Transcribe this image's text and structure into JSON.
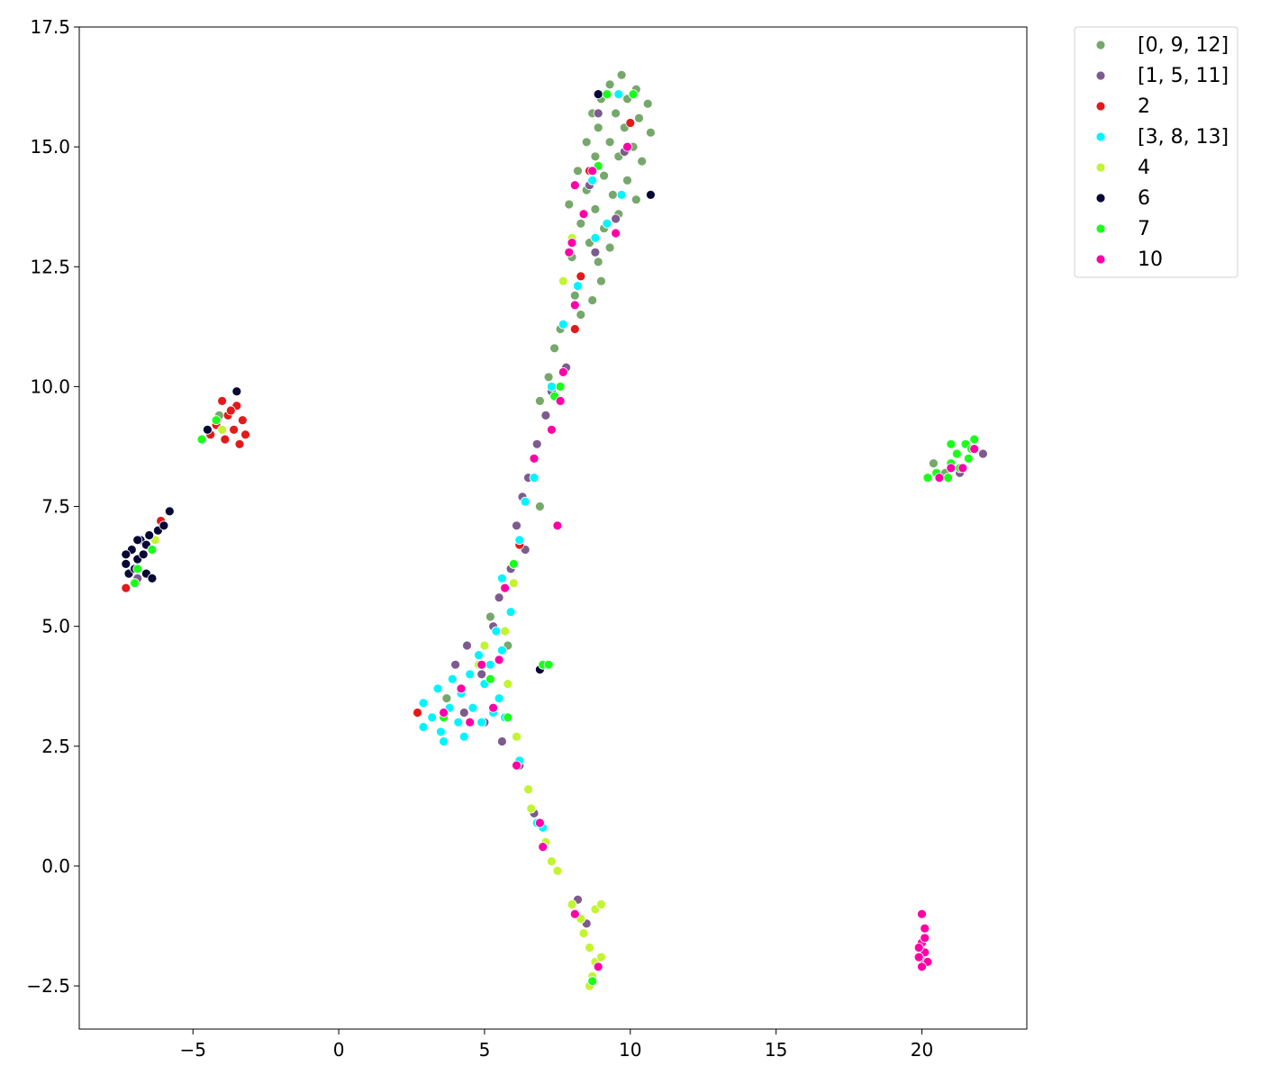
{
  "chart_data": {
    "type": "scatter",
    "title": "",
    "xlabel": "",
    "ylabel": "",
    "xlim": [
      -8.9,
      23.6
    ],
    "ylim": [
      -3.4,
      17.5
    ],
    "xticks": [
      -5,
      0,
      5,
      10,
      15,
      20
    ],
    "xtick_labels": [
      "−5",
      "0",
      "5",
      "10",
      "15",
      "20"
    ],
    "yticks": [
      -2.5,
      0.0,
      2.5,
      5.0,
      7.5,
      10.0,
      12.5,
      15.0,
      17.5
    ],
    "ytick_labels": [
      "−2.5",
      "0.0",
      "2.5",
      "5.0",
      "7.5",
      "10.0",
      "12.5",
      "15.0",
      "17.5"
    ],
    "grid": false,
    "legend_position": "outside-top-right",
    "series": [
      {
        "name": "[0, 9, 12]",
        "color": "#76a86b",
        "points": [
          [
            9.7,
            16.5
          ],
          [
            9.3,
            16.3
          ],
          [
            10.2,
            16.2
          ],
          [
            9.0,
            16.0
          ],
          [
            9.9,
            16.0
          ],
          [
            10.6,
            15.9
          ],
          [
            8.7,
            15.7
          ],
          [
            9.5,
            15.7
          ],
          [
            10.3,
            15.6
          ],
          [
            8.9,
            15.4
          ],
          [
            9.8,
            15.4
          ],
          [
            10.7,
            15.3
          ],
          [
            8.5,
            15.1
          ],
          [
            9.3,
            15.1
          ],
          [
            10.1,
            15.0
          ],
          [
            8.8,
            14.8
          ],
          [
            9.6,
            14.8
          ],
          [
            10.4,
            14.7
          ],
          [
            8.2,
            14.5
          ],
          [
            9.1,
            14.4
          ],
          [
            9.9,
            14.3
          ],
          [
            8.5,
            14.1
          ],
          [
            9.4,
            14.0
          ],
          [
            10.2,
            13.9
          ],
          [
            7.9,
            13.8
          ],
          [
            8.8,
            13.7
          ],
          [
            9.6,
            13.6
          ],
          [
            8.3,
            13.4
          ],
          [
            9.1,
            13.3
          ],
          [
            8.6,
            13.0
          ],
          [
            9.3,
            12.9
          ],
          [
            8.0,
            12.7
          ],
          [
            8.9,
            12.6
          ],
          [
            8.3,
            12.3
          ],
          [
            9.0,
            12.2
          ],
          [
            8.1,
            11.9
          ],
          [
            8.7,
            11.8
          ],
          [
            8.3,
            11.5
          ],
          [
            7.6,
            11.2
          ],
          [
            7.4,
            10.8
          ],
          [
            7.2,
            10.2
          ],
          [
            6.9,
            9.7
          ],
          [
            6.9,
            7.5
          ],
          [
            5.2,
            5.2
          ],
          [
            5.8,
            4.6
          ],
          [
            3.7,
            3.5
          ],
          [
            20.4,
            8.4
          ],
          [
            20.8,
            8.2
          ],
          [
            -4.1,
            9.4
          ]
        ]
      },
      {
        "name": "[1, 5, 11]",
        "color": "#7e5b8f",
        "points": [
          [
            8.9,
            15.7
          ],
          [
            9.8,
            14.9
          ],
          [
            8.6,
            14.2
          ],
          [
            9.5,
            13.5
          ],
          [
            8.8,
            12.8
          ],
          [
            7.8,
            10.4
          ],
          [
            7.3,
            9.9
          ],
          [
            7.1,
            9.4
          ],
          [
            6.8,
            8.8
          ],
          [
            6.5,
            8.1
          ],
          [
            6.3,
            7.7
          ],
          [
            6.1,
            7.1
          ],
          [
            6.4,
            6.6
          ],
          [
            5.9,
            6.2
          ],
          [
            5.5,
            5.6
          ],
          [
            5.3,
            5.0
          ],
          [
            4.4,
            4.6
          ],
          [
            4.0,
            4.2
          ],
          [
            4.9,
            4.0
          ],
          [
            4.3,
            3.2
          ],
          [
            5.0,
            3.0
          ],
          [
            5.6,
            2.6
          ],
          [
            6.2,
            2.1
          ],
          [
            6.7,
            1.1
          ],
          [
            8.2,
            -0.7
          ],
          [
            8.5,
            -1.2
          ],
          [
            20.0,
            -1.6
          ],
          [
            20.1,
            -2.0
          ],
          [
            21.3,
            8.2
          ],
          [
            22.1,
            8.6
          ],
          [
            -6.9,
            6.0
          ]
        ]
      },
      {
        "name": "2",
        "color": "#e31a1c",
        "points": [
          [
            -4.0,
            9.7
          ],
          [
            -3.5,
            9.6
          ],
          [
            -3.8,
            9.4
          ],
          [
            -3.3,
            9.3
          ],
          [
            -4.2,
            9.2
          ],
          [
            -3.6,
            9.1
          ],
          [
            -3.9,
            8.9
          ],
          [
            -3.4,
            8.8
          ],
          [
            -4.4,
            9.0
          ],
          [
            -3.2,
            9.0
          ],
          [
            -3.7,
            9.5
          ],
          [
            -6.1,
            7.2
          ],
          [
            -7.3,
            5.8
          ],
          [
            8.6,
            14.5
          ],
          [
            10.0,
            15.5
          ],
          [
            8.3,
            12.3
          ],
          [
            8.1,
            11.2
          ],
          [
            6.2,
            6.7
          ],
          [
            2.7,
            3.2
          ]
        ]
      },
      {
        "name": "[3, 8, 13]",
        "color": "#00f5ff",
        "points": [
          [
            9.6,
            16.1
          ],
          [
            8.7,
            14.3
          ],
          [
            9.7,
            14.0
          ],
          [
            9.2,
            13.4
          ],
          [
            8.8,
            13.1
          ],
          [
            8.2,
            12.1
          ],
          [
            7.7,
            11.3
          ],
          [
            7.3,
            10.0
          ],
          [
            6.7,
            8.1
          ],
          [
            6.4,
            7.6
          ],
          [
            6.2,
            6.8
          ],
          [
            6.0,
            6.3
          ],
          [
            5.6,
            6.0
          ],
          [
            5.9,
            5.3
          ],
          [
            5.4,
            4.9
          ],
          [
            5.6,
            4.5
          ],
          [
            4.8,
            4.4
          ],
          [
            5.2,
            4.2
          ],
          [
            4.5,
            4.0
          ],
          [
            3.9,
            3.9
          ],
          [
            5.0,
            3.8
          ],
          [
            3.4,
            3.7
          ],
          [
            4.2,
            3.6
          ],
          [
            5.5,
            3.5
          ],
          [
            2.9,
            3.4
          ],
          [
            3.8,
            3.3
          ],
          [
            4.6,
            3.3
          ],
          [
            3.2,
            3.1
          ],
          [
            4.1,
            3.0
          ],
          [
            4.9,
            3.0
          ],
          [
            3.5,
            2.8
          ],
          [
            4.3,
            2.7
          ],
          [
            2.9,
            2.9
          ],
          [
            3.6,
            2.6
          ],
          [
            5.3,
            3.2
          ],
          [
            5.7,
            3.1
          ],
          [
            6.2,
            2.2
          ],
          [
            7.0,
            0.8
          ],
          [
            6.8,
            0.9
          ]
        ]
      },
      {
        "name": "4",
        "color": "#c2f530",
        "points": [
          [
            6.5,
            1.6
          ],
          [
            6.6,
            1.2
          ],
          [
            7.1,
            0.5
          ],
          [
            7.3,
            0.1
          ],
          [
            7.5,
            -0.1
          ],
          [
            8.0,
            -0.8
          ],
          [
            8.3,
            -1.1
          ],
          [
            8.4,
            -1.4
          ],
          [
            8.6,
            -1.7
          ],
          [
            8.8,
            -2.0
          ],
          [
            8.7,
            -2.3
          ],
          [
            8.6,
            -2.5
          ],
          [
            9.0,
            -1.9
          ],
          [
            8.8,
            -0.9
          ],
          [
            9.0,
            -0.8
          ],
          [
            8.0,
            13.1
          ],
          [
            7.7,
            12.2
          ],
          [
            6.0,
            5.9
          ],
          [
            5.7,
            4.9
          ],
          [
            5.0,
            4.6
          ],
          [
            4.8,
            4.2
          ],
          [
            5.8,
            3.8
          ],
          [
            6.1,
            2.7
          ],
          [
            -4.0,
            9.1
          ],
          [
            -6.3,
            6.8
          ]
        ]
      },
      {
        "name": "6",
        "color": "#070836",
        "points": [
          [
            -7.3,
            6.3
          ],
          [
            -7.1,
            6.6
          ],
          [
            -6.8,
            6.8
          ],
          [
            -7.2,
            6.1
          ],
          [
            -6.9,
            6.4
          ],
          [
            -6.6,
            6.7
          ],
          [
            -7.0,
            6.2
          ],
          [
            -6.7,
            6.5
          ],
          [
            -6.5,
            6.9
          ],
          [
            -7.3,
            6.5
          ],
          [
            -6.9,
            6.8
          ],
          [
            -6.6,
            6.1
          ],
          [
            -6.2,
            7.0
          ],
          [
            -6.0,
            7.1
          ],
          [
            -5.8,
            7.4
          ],
          [
            -6.4,
            6.0
          ],
          [
            -3.5,
            9.9
          ],
          [
            -4.5,
            9.1
          ],
          [
            8.9,
            16.1
          ],
          [
            10.7,
            14.0
          ],
          [
            6.9,
            4.1
          ]
        ]
      },
      {
        "name": "7",
        "color": "#1aff1a",
        "points": [
          [
            21.2,
            8.6
          ],
          [
            21.5,
            8.8
          ],
          [
            21.0,
            8.4
          ],
          [
            21.7,
            8.7
          ],
          [
            20.9,
            8.1
          ],
          [
            21.3,
            8.3
          ],
          [
            21.8,
            8.9
          ],
          [
            20.5,
            8.2
          ],
          [
            21.0,
            8.8
          ],
          [
            21.6,
            8.5
          ],
          [
            20.2,
            8.1
          ],
          [
            -4.7,
            8.9
          ],
          [
            -4.2,
            9.3
          ],
          [
            -6.9,
            6.2
          ],
          [
            -7.0,
            5.9
          ],
          [
            -6.4,
            6.6
          ],
          [
            9.2,
            16.1
          ],
          [
            10.1,
            16.1
          ],
          [
            8.9,
            14.6
          ],
          [
            7.6,
            10.0
          ],
          [
            7.4,
            9.8
          ],
          [
            6.0,
            6.3
          ],
          [
            7.0,
            4.2
          ],
          [
            7.2,
            4.2
          ],
          [
            5.8,
            3.1
          ],
          [
            3.6,
            3.1
          ],
          [
            5.2,
            3.9
          ],
          [
            8.7,
            -2.4
          ]
        ]
      },
      {
        "name": "10",
        "color": "#ff00a8",
        "points": [
          [
            20.0,
            -1.0
          ],
          [
            20.1,
            -1.3
          ],
          [
            20.0,
            -1.6
          ],
          [
            20.1,
            -1.8
          ],
          [
            19.9,
            -1.9
          ],
          [
            20.2,
            -2.0
          ],
          [
            20.0,
            -2.1
          ],
          [
            20.1,
            -1.5
          ],
          [
            19.9,
            -1.7
          ],
          [
            21.0,
            8.3
          ],
          [
            21.4,
            8.3
          ],
          [
            21.8,
            8.7
          ],
          [
            20.6,
            8.1
          ],
          [
            9.9,
            15.0
          ],
          [
            8.1,
            14.2
          ],
          [
            8.7,
            14.5
          ],
          [
            9.5,
            13.2
          ],
          [
            8.0,
            13.0
          ],
          [
            8.4,
            13.6
          ],
          [
            7.9,
            12.8
          ],
          [
            8.1,
            11.7
          ],
          [
            7.7,
            10.3
          ],
          [
            7.6,
            9.7
          ],
          [
            7.3,
            9.1
          ],
          [
            7.5,
            7.1
          ],
          [
            6.7,
            8.5
          ],
          [
            5.7,
            5.8
          ],
          [
            4.9,
            4.2
          ],
          [
            4.2,
            3.7
          ],
          [
            3.6,
            3.2
          ],
          [
            4.5,
            3.0
          ],
          [
            5.3,
            3.3
          ],
          [
            6.1,
            2.1
          ],
          [
            6.9,
            0.9
          ],
          [
            7.0,
            0.4
          ],
          [
            8.1,
            -1.0
          ],
          [
            8.9,
            -2.1
          ],
          [
            5.5,
            4.3
          ]
        ]
      }
    ]
  }
}
